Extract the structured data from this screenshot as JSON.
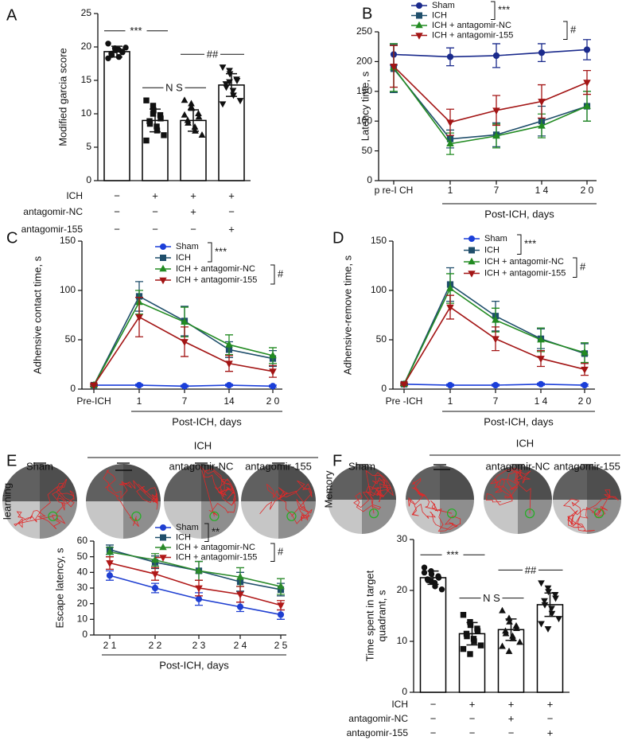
{
  "chart_data": [
    {
      "type": "bar",
      "panel": "A",
      "ylabel": "Modified garcia score",
      "values": [
        19.3,
        9.0,
        9.0,
        14.3
      ],
      "errors": [
        0.8,
        1.7,
        1.6,
        1.7
      ],
      "points": [
        [
          20.5,
          19.8,
          19.5,
          19.3,
          19.2,
          19.0,
          18.8,
          19.6,
          18.5,
          19.9,
          18.3
        ],
        [
          12.0,
          11.2,
          10.5,
          9.8,
          9.3,
          8.9,
          8.5,
          8.1,
          7.5,
          6.8,
          6.0,
          10.0
        ],
        [
          12.0,
          11.5,
          10.8,
          10.0,
          9.5,
          9.0,
          8.6,
          8.0,
          7.4,
          6.8,
          9.8,
          11.0
        ],
        [
          17.0,
          16.5,
          16.0,
          15.2,
          15.0,
          14.5,
          14.0,
          13.5,
          12.8,
          12.0,
          11.5,
          14.8
        ]
      ],
      "point_markers": [
        "circle",
        "square",
        "triangle-up",
        "triangle-down"
      ],
      "bar_color": "#ffffff",
      "edge_color": "#000000",
      "ylim": [
        0,
        25
      ],
      "yticks": [
        0,
        5,
        10,
        15,
        20,
        25
      ],
      "annotations": [
        {
          "text": "***",
          "between": [
            0,
            1
          ]
        },
        {
          "text": "N S",
          "between": [
            1,
            2
          ]
        },
        {
          "text": "##",
          "between": [
            2,
            3
          ]
        }
      ],
      "conditions": [
        {
          "name": "ICH",
          "signs": [
            "−",
            "+",
            "+",
            "+"
          ]
        },
        {
          "name": "antagomir-NC",
          "signs": [
            "−",
            "−",
            "+",
            "−"
          ]
        },
        {
          "name": "antagomir-155",
          "signs": [
            "−",
            "−",
            "−",
            "+"
          ]
        }
      ]
    },
    {
      "type": "line",
      "panel": "B",
      "xlabel": "Post-ICH, days",
      "ylabel": "Latency time, s",
      "categories": [
        "p re-I CH",
        "1",
        "7",
        "1 4",
        "2 0"
      ],
      "ylim": [
        0,
        250
      ],
      "yticks": [
        0,
        50,
        100,
        150,
        200,
        250
      ],
      "series": [
        {
          "name": "Sham",
          "color": "#1a2a8c",
          "marker": "circle",
          "values": [
            212,
            208,
            210,
            215,
            220
          ],
          "errors": [
            18,
            15,
            20,
            15,
            17
          ]
        },
        {
          "name": "ICH",
          "color": "#1f4e6b",
          "marker": "square",
          "values": [
            188,
            70,
            77,
            100,
            125
          ],
          "errors": [
            40,
            15,
            20,
            25,
            25
          ]
        },
        {
          "name": "ICH + antagomir-NC",
          "color": "#228b22",
          "marker": "triangle-up",
          "values": [
            190,
            62,
            75,
            92,
            125
          ],
          "errors": [
            40,
            18,
            20,
            20,
            25
          ]
        },
        {
          "name": "ICH + antagomir-155",
          "color": "#a31515",
          "marker": "triangle-down",
          "values": [
            192,
            98,
            118,
            133,
            165
          ],
          "errors": [
            35,
            22,
            25,
            28,
            20
          ]
        }
      ],
      "legend_brackets": [
        {
          "text": "***",
          "series": [
            0,
            1
          ]
        },
        {
          "text": "#",
          "series": [
            2,
            3
          ]
        }
      ]
    },
    {
      "type": "line",
      "panel": "C",
      "xlabel": "Post-ICH, days",
      "ylabel": "Adhensive contact time, s",
      "categories": [
        "Pre-ICH",
        "1",
        "7",
        "14",
        "2 0"
      ],
      "ylim": [
        0,
        150
      ],
      "yticks": [
        0,
        50,
        100,
        150
      ],
      "series": [
        {
          "name": "Sham",
          "color": "#1b3fd9",
          "marker": "circle",
          "values": [
            4,
            4,
            3,
            4,
            3
          ],
          "errors": [
            1,
            1,
            1,
            1,
            1
          ]
        },
        {
          "name": "ICH",
          "color": "#1f4e6b",
          "marker": "square",
          "values": [
            4,
            94,
            69,
            40,
            31
          ],
          "errors": [
            1,
            15,
            15,
            8,
            8
          ]
        },
        {
          "name": "ICH + antagomir-NC",
          "color": "#228b22",
          "marker": "triangle-up",
          "values": [
            4,
            88,
            68,
            45,
            34
          ],
          "errors": [
            1,
            12,
            15,
            10,
            8
          ]
        },
        {
          "name": "ICH + antagomir-155",
          "color": "#a31515",
          "marker": "triangle-down",
          "values": [
            4,
            73,
            48,
            26,
            18
          ],
          "errors": [
            1,
            20,
            15,
            8,
            6
          ]
        }
      ],
      "legend_brackets": [
        {
          "text": "***",
          "series": [
            0,
            1
          ]
        },
        {
          "text": "#",
          "series": [
            2,
            3
          ]
        }
      ]
    },
    {
      "type": "line",
      "panel": "D",
      "xlabel": "Post-ICH, days",
      "ylabel": "Adhensive-remove time, s",
      "categories": [
        "Pre -ICH",
        "1",
        "7",
        "1 4",
        "2 0"
      ],
      "ylim": [
        0,
        150
      ],
      "yticks": [
        0,
        50,
        100,
        150
      ],
      "series": [
        {
          "name": "Sham",
          "color": "#1b3fd9",
          "marker": "circle",
          "values": [
            5,
            4,
            4,
            5,
            4
          ],
          "errors": [
            1,
            1,
            1,
            1,
            1
          ]
        },
        {
          "name": "ICH",
          "color": "#1f4e6b",
          "marker": "square",
          "values": [
            5,
            106,
            74,
            51,
            36
          ],
          "errors": [
            1,
            17,
            15,
            10,
            10
          ]
        },
        {
          "name": "ICH + antagomir-NC",
          "color": "#228b22",
          "marker": "triangle-up",
          "values": [
            5,
            102,
            70,
            50,
            37
          ],
          "errors": [
            1,
            15,
            12,
            12,
            10
          ]
        },
        {
          "name": "ICH + antagomir-155",
          "color": "#a31515",
          "marker": "triangle-down",
          "values": [
            5,
            83,
            51,
            31,
            20
          ],
          "errors": [
            1,
            12,
            12,
            8,
            6
          ]
        }
      ],
      "legend_brackets": [
        {
          "text": "***",
          "series": [
            0,
            1
          ]
        },
        {
          "text": "#",
          "series": [
            2,
            3
          ]
        }
      ]
    },
    {
      "type": "line",
      "panel": "E",
      "xlabel": "Post-ICH, days",
      "ylabel": "Escape latency, s",
      "categories": [
        "2 1",
        "2 2",
        "2 3",
        "2 4",
        "2 5"
      ],
      "ylim": [
        0,
        60
      ],
      "yticks": [
        0,
        10,
        20,
        30,
        40,
        50,
        60
      ],
      "series": [
        {
          "name": "Sham",
          "color": "#1f3fd1",
          "marker": "circle",
          "values": [
            38,
            30,
            23,
            18,
            13
          ],
          "errors": [
            3,
            3,
            4,
            3,
            3
          ]
        },
        {
          "name": "ICH",
          "color": "#1f4e6b",
          "marker": "square",
          "values": [
            54.5,
            46.5,
            41,
            34,
            29
          ],
          "errors": [
            3,
            4,
            6,
            6,
            4
          ]
        },
        {
          "name": "ICH + antagomir-NC",
          "color": "#2a8a2a",
          "marker": "triangle-up",
          "values": [
            53,
            48,
            41,
            37,
            31
          ],
          "errors": [
            3,
            4,
            6,
            6,
            5
          ]
        },
        {
          "name": "ICH + antagomir-155",
          "color": "#b01818",
          "marker": "triangle-down",
          "values": [
            46,
            39,
            30,
            26,
            19
          ],
          "errors": [
            4,
            4,
            5,
            5,
            3
          ]
        }
      ],
      "legend_brackets": [
        {
          "text": "**",
          "series": [
            0,
            1
          ]
        },
        {
          "text": "#",
          "series": [
            2,
            3
          ]
        }
      ],
      "mazes": {
        "side_label": "learning",
        "group_label": "ICH",
        "labels": [
          "Sham",
          null,
          "antagomir-NC",
          "antagomir-155"
        ]
      }
    },
    {
      "type": "bar",
      "panel": "F",
      "ylabel": [
        "Time spent in target",
        "quadrant, s"
      ],
      "values": [
        22.5,
        11.5,
        12.3,
        17.2
      ],
      "errors": [
        1.3,
        2.2,
        2.1,
        2.3
      ],
      "points": [
        [
          24.5,
          23.8,
          23.2,
          22.8,
          22.5,
          22.2,
          22.0,
          21.5,
          20.8,
          20.2,
          23.5,
          21.8
        ],
        [
          15.2,
          13.8,
          13.2,
          12.5,
          12.0,
          11.5,
          11.0,
          10.5,
          10.0,
          9.2,
          8.5,
          7.5
        ],
        [
          16.0,
          14.5,
          13.8,
          13.0,
          12.5,
          12.0,
          11.5,
          11.0,
          10.5,
          9.8,
          9.0,
          8.0
        ],
        [
          21.5,
          20.5,
          19.8,
          19.2,
          18.5,
          18.0,
          17.2,
          16.5,
          15.5,
          14.5,
          13.5,
          12.5
        ]
      ],
      "point_markers": [
        "circle",
        "square",
        "triangle-up",
        "triangle-down"
      ],
      "bar_color": "#ffffff",
      "edge_color": "#000000",
      "ylim": [
        0,
        30
      ],
      "yticks": [
        0,
        10,
        20,
        30
      ],
      "annotations": [
        {
          "text": "***",
          "between": [
            0,
            1
          ]
        },
        {
          "text": "N S",
          "between": [
            1,
            2
          ]
        },
        {
          "text": "##",
          "between": [
            2,
            3
          ]
        }
      ],
      "conditions": [
        {
          "name": "ICH",
          "signs": [
            "−",
            "+",
            "+",
            "+"
          ]
        },
        {
          "name": "antagomir-NC",
          "signs": [
            "−",
            "−",
            "+",
            "−"
          ]
        },
        {
          "name": "antagomir-155",
          "signs": [
            "−",
            "−",
            "−",
            "+"
          ]
        }
      ],
      "mazes": {
        "side_label": "Memory",
        "group_label": "ICH",
        "labels": [
          "Sham",
          null,
          "antagomir-NC",
          "antagomir-155"
        ]
      }
    }
  ]
}
